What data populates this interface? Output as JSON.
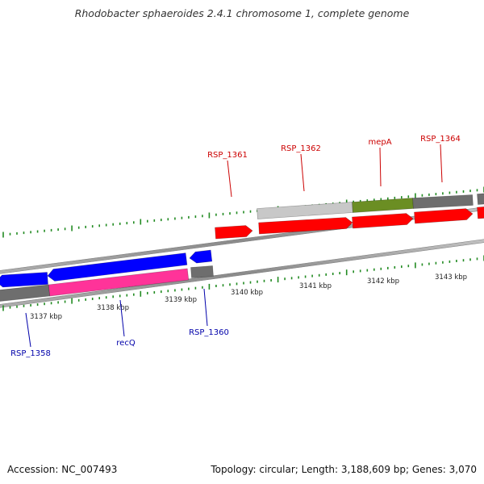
{
  "title": "Rhodobacter sphaeroides 2.4.1 chromosome 1, complete genome",
  "footer": {
    "accession": "Accession: NC_007493",
    "summary": "Topology: circular; Length: 3,188,609 bp; Genes: 3,070"
  },
  "colors": {
    "forward_gene": "#ff0000",
    "reverse_gene": "#0000ff",
    "forward_label": "#cc0000",
    "reverse_label": "#0000aa",
    "rrna_magenta": "#ff3399",
    "green_feature": "#6b8e23",
    "gray_feature": "#6e6e6e",
    "light_gray_feature": "#c8c8c8",
    "tick": "#228b22",
    "backbone": "#8c8c8c"
  },
  "scale": {
    "unit": "kbp",
    "ticks": [
      {
        "label": "3137 kbp",
        "value": 3137
      },
      {
        "label": "3138 kbp",
        "value": 3138
      },
      {
        "label": "3139 kbp",
        "value": 3139
      },
      {
        "label": "3140 kbp",
        "value": 3140
      },
      {
        "label": "3141 kbp",
        "value": 3141
      },
      {
        "label": "3142 kbp",
        "value": 3142
      },
      {
        "label": "3143 kbp",
        "value": 3143
      }
    ]
  },
  "genes": {
    "forward": [
      {
        "name": "RSP_1361"
      },
      {
        "name": "RSP_1362"
      },
      {
        "name": "mepA"
      },
      {
        "name": "RSP_1364"
      }
    ],
    "reverse": [
      {
        "name": "RSP_1358"
      },
      {
        "name": "recQ"
      },
      {
        "name": "RSP_1360"
      }
    ]
  }
}
